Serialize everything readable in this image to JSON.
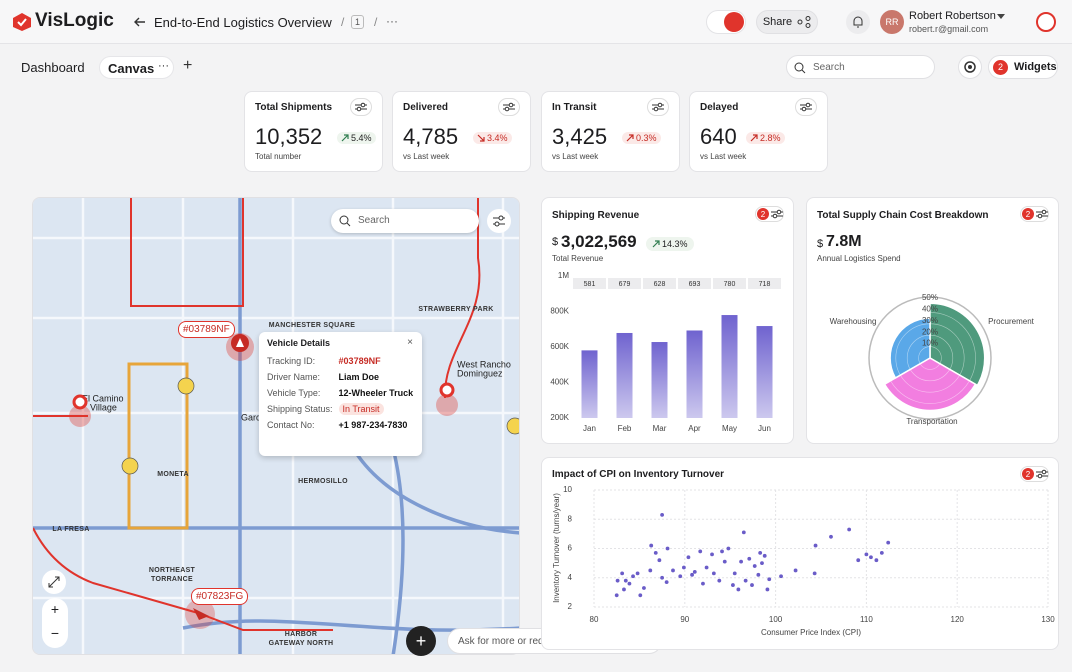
{
  "header": {
    "logo": "VisLogic",
    "title": "End-to-End Logistics Overview",
    "sep1": "/",
    "page_count": "1",
    "sep2": "/",
    "more": "···",
    "share": "Share",
    "user_initials": "RR",
    "user_name": "Robert Robertson",
    "user_email": "robert.r@gmail.com"
  },
  "toolbar": {
    "tabs": [
      "Dashboard",
      "Canvas"
    ],
    "more": "···",
    "add": "+",
    "search_placeholder": "Search",
    "widgets_badge": "2",
    "widgets": "Widgets"
  },
  "kpis": [
    {
      "title": "Total Shipments",
      "value": "10,352",
      "change": "5.4%",
      "direction": "up",
      "good": true,
      "note": "Total number"
    },
    {
      "title": "Delivered",
      "value": "4,785",
      "change": "3.4%",
      "direction": "down",
      "good": false,
      "note": "vs Last week"
    },
    {
      "title": "In Transit",
      "value": "3,425",
      "change": "0.3%",
      "direction": "up",
      "good": false,
      "note": "vs Last week"
    },
    {
      "title": "Delayed",
      "value": "640",
      "change": "2.8%",
      "direction": "up",
      "good": false,
      "note": "vs Last week"
    }
  ],
  "map": {
    "search_placeholder": "Search",
    "labels": [
      "MANCHESTER SQUARE",
      "STRAWBERRY PARK",
      "West Rancho",
      "Dominguez",
      "El Camino",
      "Village",
      "Gardena",
      "MONETA",
      "HERMOSILLO",
      "LA FRESA",
      "NORTHEAST",
      "TORRANCE",
      "HARBOR",
      "GATEWAY NORTH"
    ],
    "pins": [
      "#03789NF",
      "#07823FG"
    ],
    "popup": {
      "title": "Vehicle Details",
      "rows": [
        {
          "label": "Tracking ID:",
          "value": "#03789NF"
        },
        {
          "label": "Driver Name:",
          "value": "Liam Doe"
        },
        {
          "label": "Vehicle Type:",
          "value": "12-Wheeler Truck"
        },
        {
          "label": "Shipping Status:",
          "value": "In Transit"
        },
        {
          "label": "Contact No:",
          "value": "+1 987-234-7830"
        }
      ]
    },
    "zoom_in": "+",
    "zoom_out": "−"
  },
  "revenue": {
    "title": "Shipping Revenue",
    "badge": "2",
    "currency": "$",
    "total": "3,022,569",
    "change": "14.3%",
    "note": "Total Revenue",
    "chart": {
      "type": "bar",
      "categories": [
        "Jan",
        "Feb",
        "Mar",
        "Apr",
        "May",
        "Jun"
      ],
      "values": [
        581000,
        679000,
        628000,
        693000,
        780000,
        718000
      ],
      "value_labels": [
        "581",
        "679",
        "628",
        "693",
        "780",
        "718"
      ],
      "ylim": [
        200000,
        1000000
      ],
      "yticks": [
        {
          "value": 200000,
          "label": "200K"
        },
        {
          "value": 400000,
          "label": "400K"
        },
        {
          "value": 600000,
          "label": "600K"
        },
        {
          "value": 800000,
          "label": "800K"
        },
        {
          "value": 1000000,
          "label": "1M"
        }
      ],
      "color": "#6f63cf",
      "grid": false
    }
  },
  "cost": {
    "title": "Total Supply Chain Cost Breakdown",
    "badge": "2",
    "currency": "$",
    "total": "7.8M",
    "note": "Annual Logistics Spend",
    "chart": {
      "type": "polarArea",
      "categories": [
        "Procurement",
        "Transportation",
        "Warehousing"
      ],
      "values": [
        48,
        46,
        35
      ],
      "colors": [
        "#4f9a7d",
        "#f27ee0",
        "#5aa8e8"
      ],
      "rlim": [
        0,
        50
      ],
      "rticks": [
        {
          "value": 10,
          "label": "10%"
        },
        {
          "value": 20,
          "label": "20%"
        },
        {
          "value": 30,
          "label": "30%"
        },
        {
          "value": 40,
          "label": "40%"
        },
        {
          "value": 50,
          "label": "50%"
        }
      ]
    }
  },
  "scatter": {
    "title": "Impact of CPI on Inventory Turnover",
    "badge": "2",
    "chart": {
      "type": "scatter",
      "xlabel": "Consumer Price Index (CPI)",
      "ylabel": "Inventory Turnover (turns/year)",
      "x": [
        87.5,
        83.1,
        82.5,
        83.3,
        83.9,
        84.3,
        83.5,
        84.8,
        85.5,
        86.2,
        86.3,
        86.8,
        87.2,
        87.5,
        88.0,
        88.1,
        88.7,
        89.5,
        89.9,
        90.4,
        90.8,
        91.1,
        91.7,
        92.0,
        92.4,
        93.0,
        93.2,
        93.8,
        94.1,
        94.4,
        94.8,
        95.3,
        95.5,
        95.9,
        96.2,
        96.5,
        96.7,
        97.1,
        97.4,
        97.7,
        98.1,
        98.3,
        98.5,
        98.8,
        99.1,
        99.3,
        100.6,
        102.2,
        104.3,
        104.4,
        106.1,
        108.1,
        109.1,
        110.0,
        110.5,
        111.1,
        111.7,
        112.4,
        85.1,
        82.6
      ],
      "values": [
        8.3,
        4.3,
        2.8,
        3.2,
        3.6,
        4.1,
        3.8,
        4.3,
        3.3,
        4.5,
        6.2,
        5.7,
        5.2,
        4.0,
        3.7,
        6.0,
        4.5,
        4.1,
        4.7,
        5.4,
        4.2,
        4.4,
        5.8,
        3.6,
        4.7,
        5.6,
        4.3,
        3.8,
        5.8,
        5.1,
        6.0,
        3.5,
        4.3,
        3.2,
        5.1,
        7.1,
        3.8,
        5.3,
        3.5,
        4.8,
        4.2,
        5.7,
        5.0,
        5.5,
        3.2,
        3.9,
        4.1,
        4.5,
        4.3,
        6.2,
        6.8,
        7.3,
        5.2,
        5.6,
        5.4,
        5.2,
        5.7,
        6.4,
        2.8,
        3.8
      ],
      "xlim": [
        80,
        130
      ],
      "ylim": [
        2,
        10
      ],
      "xticks": [
        80,
        90,
        100,
        110,
        120,
        130
      ],
      "yticks": [
        2,
        4,
        6,
        8,
        10
      ],
      "color": "#6a5cc8",
      "grid": true
    }
  },
  "assistant": {
    "add": "+",
    "placeholder": "Ask for more or request a change"
  }
}
